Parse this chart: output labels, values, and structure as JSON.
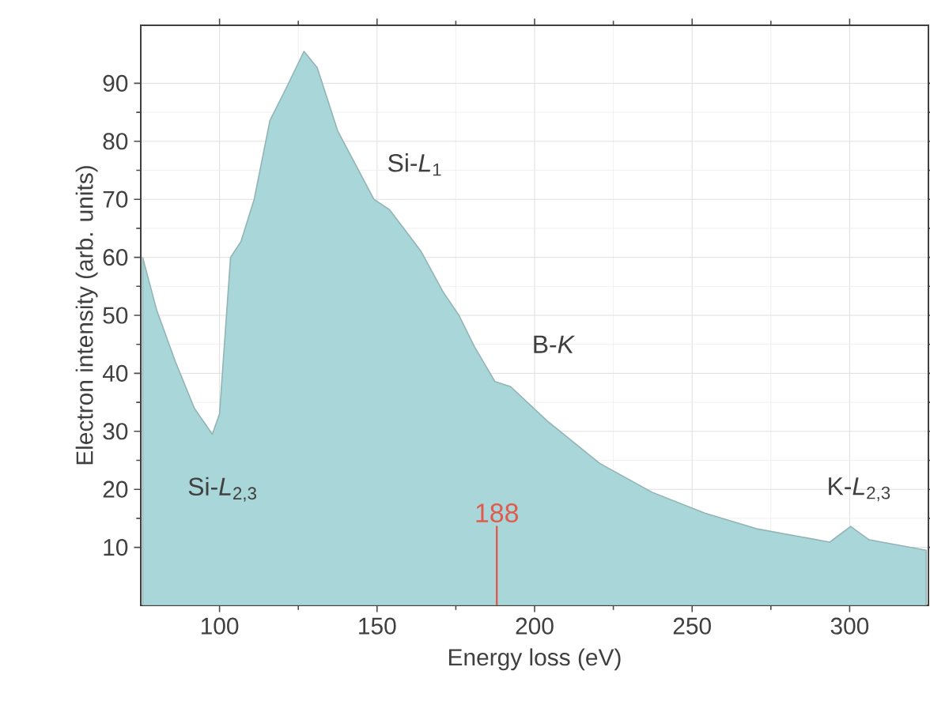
{
  "chart_data": {
    "type": "area",
    "xlabel": "Energy loss (eV)",
    "ylabel": "Electron intensity (arb. units)",
    "xlim": [
      75,
      325
    ],
    "ylim": [
      0,
      100
    ],
    "xticks": [
      100,
      150,
      200,
      250,
      300
    ],
    "yticks": [
      10,
      20,
      30,
      40,
      50,
      60,
      70,
      80,
      90
    ],
    "grid": true,
    "series": [
      {
        "color": "#a9d6d8",
        "x": [
          75.6,
          80,
          86,
          92,
          97.7,
          100,
          103.5,
          106.8,
          111,
          116,
          121,
          126.8,
          131,
          137.5,
          149,
          154,
          164,
          171,
          176,
          181,
          187.4,
          192.4,
          204,
          220.6,
          237.3,
          254,
          270.5,
          293.7,
          300.3,
          306.2,
          324.3
        ],
        "values": [
          60,
          51,
          42,
          34,
          29.5,
          33,
          60,
          62.7,
          70,
          83.6,
          89,
          95.5,
          92.7,
          81.8,
          70,
          68.2,
          61,
          54,
          50,
          44.5,
          38.6,
          37.7,
          31.8,
          24.5,
          19.5,
          15.9,
          13.2,
          10.9,
          13.6,
          11.3,
          9.5
        ]
      }
    ],
    "ref_lines": [
      {
        "axis": "x",
        "value": 188,
        "label": "188",
        "color": "#e05a4e"
      }
    ],
    "annotations": [
      "Si-*L*$_{2,3}$",
      "Si-*L*$_{1}$",
      "B-*K*",
      "K-*L*$_{2,3}$"
    ]
  }
}
